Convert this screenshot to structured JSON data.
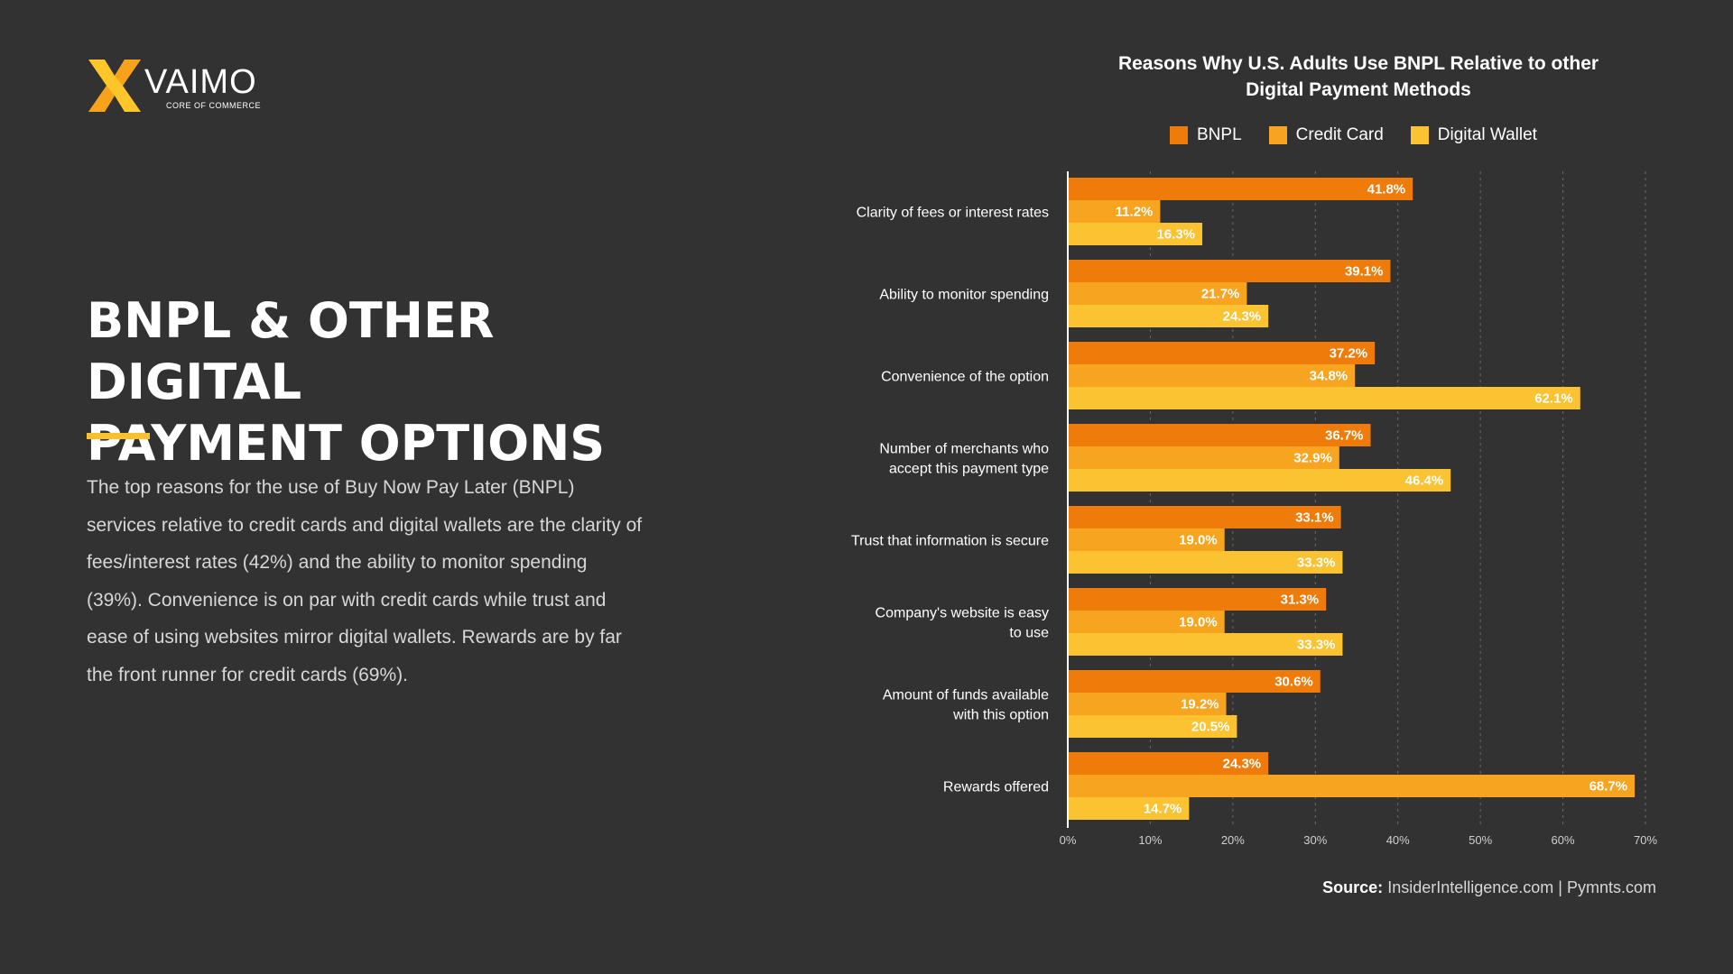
{
  "brand": {
    "name": "VAIMO",
    "tagline": "CORE OF COMMERCE",
    "logo_colors": [
      "#FFC629",
      "#F7A21B"
    ]
  },
  "headline": {
    "line1": "BNPL & OTHER DIGITAL",
    "line2": "PAYMENT OPTIONS"
  },
  "body_text": "The top reasons for the use of Buy Now Pay Later (BNPL) services relative to credit cards and digital wallets are the clarity of fees/interest rates (42%) and the ability to monitor spending (39%). Convenience is on par with credit cards while trust and ease of using websites mirror digital wallets. Rewards are by far the front runner for credit cards (69%).",
  "source": {
    "label": "Source:",
    "text": "InsiderIntelligence.com | Pymnts.com"
  },
  "colors": {
    "background": "#323232",
    "accent": "#FBC02D",
    "bnpl": "#EF7C0A",
    "credit_card": "#F7A421",
    "digital_wallet": "#FBC232"
  },
  "chart_data": {
    "type": "bar",
    "orientation": "horizontal",
    "title_lines": [
      "Reasons Why U.S. Adults Use BNPL Relative to other",
      "Digital Payment Methods"
    ],
    "categories": [
      [
        "Clarity of fees or interest rates"
      ],
      [
        "Ability to monitor spending"
      ],
      [
        "Convenience of the option"
      ],
      [
        "Number of merchants who",
        "accept this payment type"
      ],
      [
        "Trust that information is secure"
      ],
      [
        "Company's website is easy",
        "to use"
      ],
      [
        "Amount of funds available",
        "with this option"
      ],
      [
        "Rewards offered"
      ]
    ],
    "series": [
      {
        "name": "BNPL",
        "color": "#EF7C0A",
        "values": [
          41.8,
          39.1,
          37.2,
          36.7,
          33.1,
          31.3,
          30.6,
          24.3
        ]
      },
      {
        "name": "Credit Card",
        "color": "#F7A421",
        "values": [
          11.2,
          21.7,
          34.8,
          32.9,
          19.0,
          19.0,
          19.2,
          68.7
        ]
      },
      {
        "name": "Digital Wallet",
        "color": "#FBC232",
        "values": [
          16.3,
          24.3,
          62.1,
          46.4,
          33.3,
          33.3,
          20.5,
          14.7
        ]
      }
    ],
    "value_labels": [
      [
        "41.8%",
        "39.1%",
        "37.2%",
        "36.7%",
        "33.1%",
        "31.3%",
        "30.6%",
        "24.3%"
      ],
      [
        "11.2%",
        "21.7%",
        "34.8%",
        "32.9%",
        "19.0%",
        "19.0%",
        "19.2%",
        "68.7%"
      ],
      [
        "16.3%",
        "24.3%",
        "62.1%",
        "46.4%",
        "33.3%",
        "33.3%",
        "20.5%",
        "14.7%"
      ]
    ],
    "x_ticks": [
      0,
      10,
      20,
      30,
      40,
      50,
      60,
      70
    ],
    "x_tick_labels": [
      "0%",
      "10%",
      "20%",
      "30%",
      "40%",
      "50%",
      "60%",
      "70%"
    ],
    "xlim": [
      0,
      70
    ],
    "grid": "vertical dashed",
    "legend_position": "top"
  }
}
